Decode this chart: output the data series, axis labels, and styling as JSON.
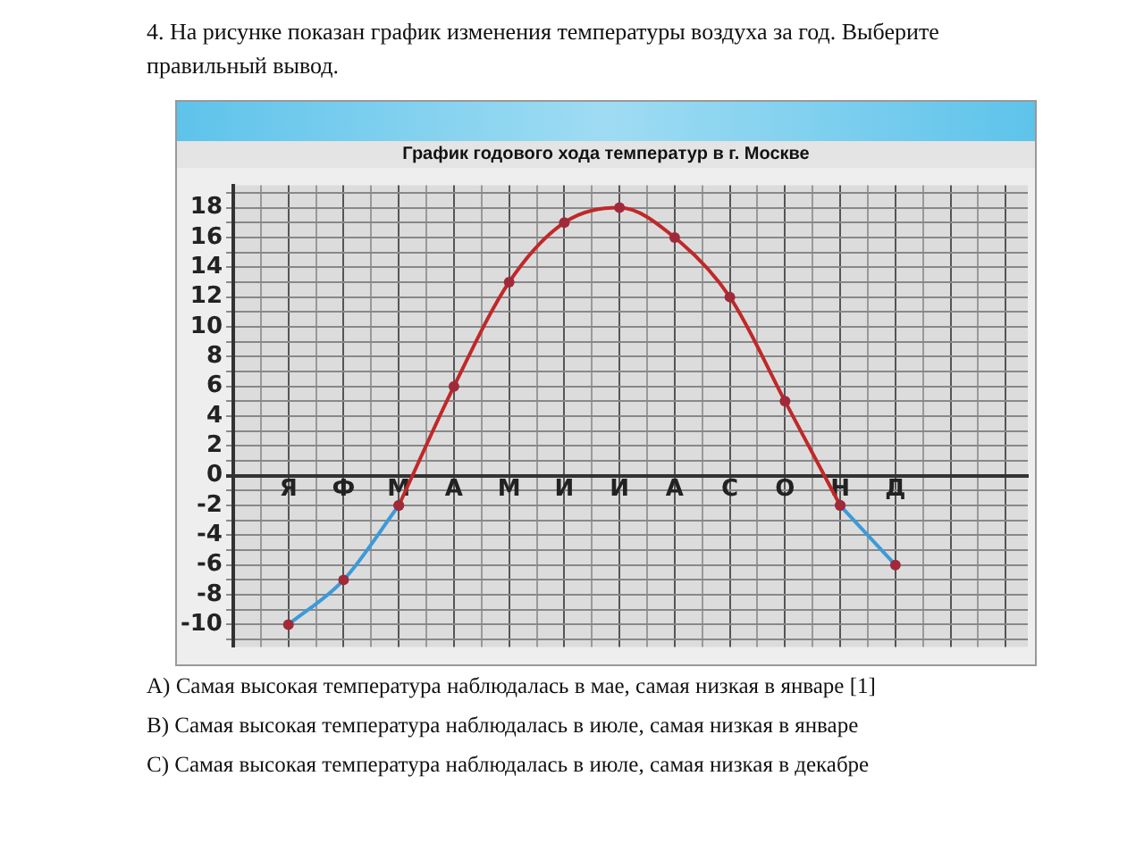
{
  "chart_data": {
    "type": "line",
    "title": "График годового хода температур в г. Москве",
    "categories": [
      "Я",
      "Ф",
      "М",
      "А",
      "М",
      "И",
      "И",
      "А",
      "С",
      "О",
      "Н",
      "Д"
    ],
    "series": [
      {
        "color": "#3d9ad8",
        "values": [
          -10,
          -7,
          -2,
          null,
          null,
          null,
          null,
          null,
          null,
          null,
          -2,
          -6
        ]
      },
      {
        "color": "#c0282a",
        "values": [
          null,
          null,
          -2,
          6,
          13,
          17,
          18,
          16,
          12,
          5,
          -2,
          null
        ]
      }
    ],
    "ylim": [
      -11.5,
      19.5
    ],
    "yticks": [
      {
        "value": -11,
        "label": null
      },
      -10,
      {
        "value": -9,
        "label": null
      },
      -8,
      {
        "value": -7,
        "label": null
      },
      -6,
      {
        "value": -5,
        "label": null
      },
      -4,
      {
        "value": -3,
        "label": null
      },
      -2,
      {
        "value": -1,
        "label": null
      },
      0,
      {
        "value": 1,
        "label": null
      },
      2,
      {
        "value": 3,
        "label": null
      },
      4,
      {
        "value": 5,
        "label": null
      },
      6,
      {
        "value": 7,
        "label": null
      },
      8,
      {
        "value": 9,
        "label": null
      },
      10,
      {
        "value": 11,
        "label": null
      },
      12,
      {
        "value": 13,
        "label": null
      },
      14,
      {
        "value": 15,
        "label": null
      },
      16,
      {
        "value": 17,
        "label": null
      },
      18,
      {
        "value": 19,
        "label": null
      }
    ],
    "grid": true,
    "marker": "circle",
    "line_style": "solid",
    "legend": false,
    "annotations": [
      "4. На рисунке показан график изменения температуры воздуха за год.  Выберите правильный вывод.",
      "А) Самая высокая температура наблюдалась в мае, самая низкая в январе [1]",
      "В) Самая высокая температура наблюдалась в июле, самая низкая в январе",
      "С) Самая высокая температура наблюдалась в июле, самая низкая в декабре"
    ]
  }
}
